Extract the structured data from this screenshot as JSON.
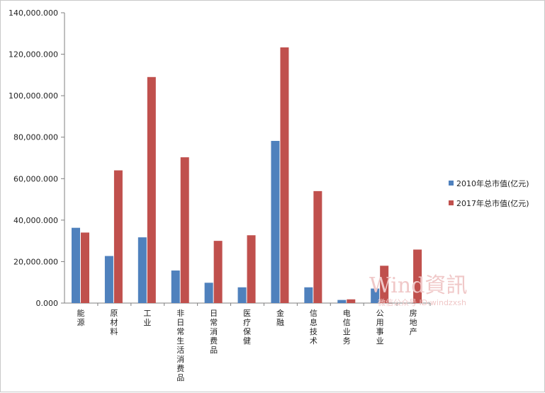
{
  "chart_data": {
    "type": "bar",
    "categories": [
      "能源",
      "原材料",
      "工业",
      "非日常生活消费品",
      "日常消费品",
      "医疗保健",
      "金融",
      "信息技术",
      "电信业务",
      "公用事业",
      "房地产"
    ],
    "series": [
      {
        "name": "2010年总市值(亿元)",
        "color": "#4f81bd",
        "values": [
          36300,
          22700,
          31700,
          15700,
          9800,
          7600,
          78200,
          7600,
          1500,
          7000,
          0
        ]
      },
      {
        "name": "2017年总市值(亿元)",
        "color": "#c0504d",
        "values": [
          34000,
          64000,
          109000,
          70300,
          30000,
          32700,
          123300,
          54000,
          1800,
          18000,
          25800
        ]
      }
    ],
    "ylim": [
      0,
      140000
    ],
    "yticks": [
      0,
      20000,
      40000,
      60000,
      80000,
      100000,
      120000,
      140000
    ],
    "ytick_labels": [
      "0.000",
      "20,000.000",
      "40,000.000",
      "60,000.000",
      "80,000.000",
      "100,000.000",
      "120,000.000",
      "140,000.000"
    ],
    "title": "",
    "xlabel": "",
    "ylabel": "",
    "grid": false,
    "legend_position": "right"
  },
  "watermark": {
    "text": "Wind資訊",
    "subtext": "微信公众号 ID:windzxsh"
  }
}
